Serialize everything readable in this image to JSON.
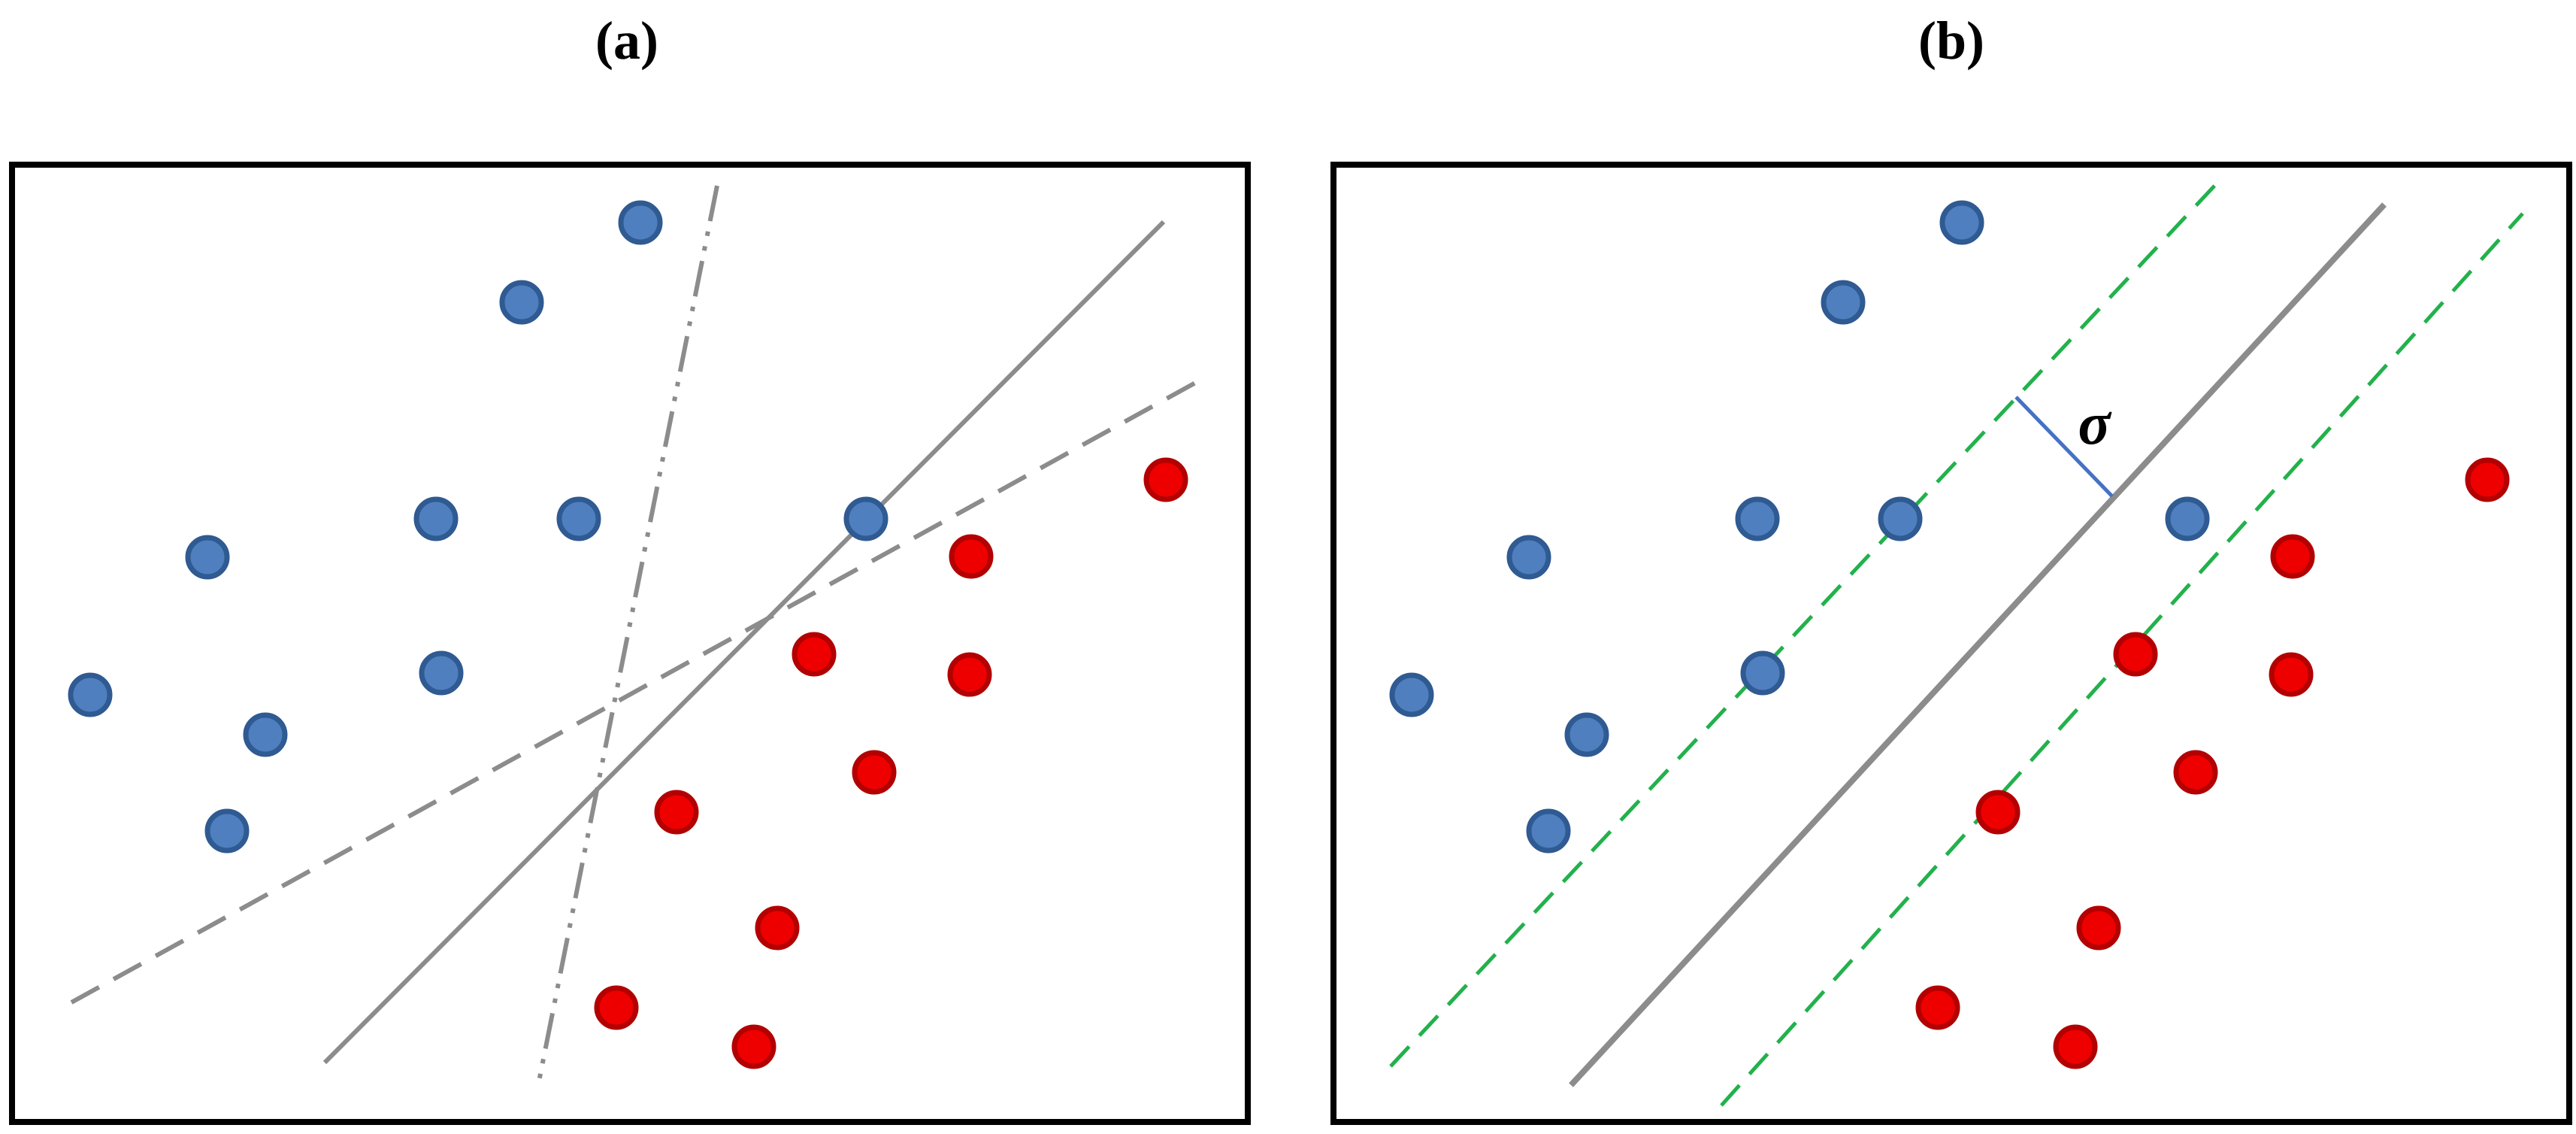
{
  "panels": {
    "a": {
      "label": "(a)"
    },
    "b": {
      "label": "(b)",
      "margin_symbol": "σ"
    }
  },
  "colors": {
    "class_blue_fill": "#4f7fbf",
    "class_blue_stroke": "#2f5a92",
    "class_red_fill": "#ee0000",
    "class_red_stroke": "#b30000",
    "separator_gray": "#8c8c8c",
    "margin_green": "#22b14c",
    "margin_marker": "#4472c4"
  }
}
